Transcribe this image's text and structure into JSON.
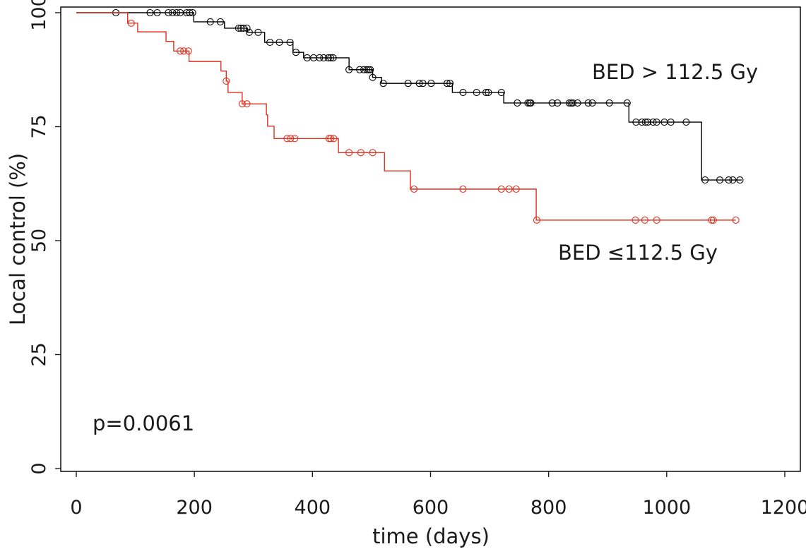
{
  "chart_data": {
    "type": "line",
    "subtype": "kaplan-meier",
    "title": "",
    "xlabel": "time (days)",
    "ylabel": "Local control (%)",
    "xlim": [
      -15,
      1225
    ],
    "ylim": [
      0,
      100
    ],
    "xticks": [
      0,
      200,
      400,
      600,
      800,
      1000,
      1200
    ],
    "yticks": [
      0,
      25,
      50,
      75,
      100
    ],
    "xtick_labels": [
      "0",
      "200",
      "400",
      "600",
      "800",
      "1000",
      "1200"
    ],
    "ytick_labels": [
      "0",
      "25",
      "50",
      "75",
      "100"
    ],
    "grid": false,
    "annotations": [
      {
        "text": "BED > 112.5 Gy",
        "x": 875,
        "y": 87.5,
        "series": "BED > 112.5 Gy"
      },
      {
        "text": "BED ≤112.5 Gy",
        "x": 817,
        "y": 48.5,
        "series": "BED ≤112.5 Gy"
      },
      {
        "text": "p=0.0061",
        "x": 30,
        "y": 6.5
      }
    ],
    "series": [
      {
        "name": "BED > 112.5 Gy",
        "color": "#000000",
        "end_time": 1127,
        "steps": [
          [
            0,
            100
          ],
          [
            199,
            98.0
          ],
          [
            251,
            96.6
          ],
          [
            290,
            95.7
          ],
          [
            319,
            93.5
          ],
          [
            367,
            91.3
          ],
          [
            385,
            90.1
          ],
          [
            462,
            87.5
          ],
          [
            502,
            85.8
          ],
          [
            517,
            84.5
          ],
          [
            637,
            82.5
          ],
          [
            724,
            80.2
          ],
          [
            936,
            76.0
          ],
          [
            1059,
            63.3
          ]
        ],
        "censored": [
          67,
          125,
          137,
          156,
          163,
          170,
          176,
          187,
          192,
          197,
          227,
          244,
          275,
          279,
          283,
          289,
          293,
          308,
          328,
          344,
          362,
          372,
          391,
          402,
          412,
          419,
          427,
          431,
          435,
          462,
          480,
          487,
          492,
          495,
          498,
          502,
          520,
          562,
          581,
          587,
          601,
          628,
          633,
          655,
          678,
          694,
          698,
          720,
          747,
          765,
          768,
          770,
          806,
          815,
          835,
          838,
          841,
          849,
          867,
          874,
          903,
          933,
          948,
          958,
          964,
          968,
          977,
          983,
          996,
          1007,
          1033,
          1065,
          1090,
          1105,
          1112,
          1124
        ]
      },
      {
        "name": "BED ≤112.5 Gy",
        "color": "#e0301e",
        "end_time": 1117,
        "steps": [
          [
            0,
            100
          ],
          [
            87,
            97.7
          ],
          [
            104,
            95.8
          ],
          [
            152,
            93.7
          ],
          [
            165,
            91.6
          ],
          [
            191,
            89.3
          ],
          [
            245,
            87.2
          ],
          [
            254,
            85.0
          ],
          [
            257,
            82.5
          ],
          [
            281,
            80.0
          ],
          [
            322,
            77.6
          ],
          [
            324,
            75.1
          ],
          [
            335,
            72.4
          ],
          [
            444,
            69.3
          ],
          [
            522,
            65.3
          ],
          [
            566,
            61.3
          ],
          [
            779,
            54.5
          ]
        ],
        "censored": [
          93,
          176,
          182,
          190,
          254,
          281,
          289,
          357,
          363,
          370,
          428,
          431,
          436,
          462,
          482,
          502,
          572,
          655,
          720,
          733,
          745,
          780,
          947,
          963,
          983,
          1076,
          1079,
          1117
        ]
      }
    ]
  }
}
